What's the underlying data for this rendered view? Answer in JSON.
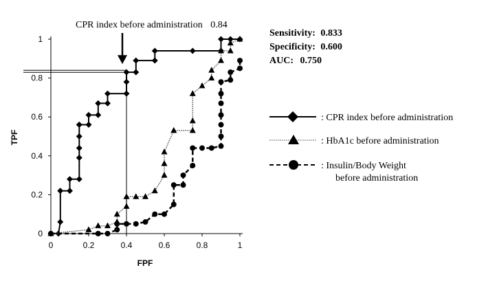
{
  "chart_data": {
    "type": "line",
    "xlabel": "FPF",
    "ylabel": "TPF",
    "xlim": [
      0,
      1
    ],
    "ylim": [
      0,
      1
    ],
    "x_ticks": [
      "0",
      "0.2",
      "0.4",
      "0.6",
      "0.8",
      "1"
    ],
    "y_ticks": [
      "0",
      "0.2",
      "0.4",
      "0.6",
      "0.8",
      "1"
    ],
    "grid": false,
    "annotation": {
      "label": "CPR index before administration",
      "value": "0.84",
      "x": 0.4,
      "y": 0.84
    },
    "stats": [
      {
        "label": "Sensitivity:",
        "value": "0.833"
      },
      {
        "label": "Specificity:",
        "value": "0.600"
      },
      {
        "label": "AUC:",
        "value": "0.750"
      }
    ],
    "legend_position": "right",
    "series": [
      {
        "name": ": CPR index before administration",
        "marker": "diamond",
        "line": "solid",
        "x": [
          0,
          0.04,
          0.05,
          0.05,
          0.1,
          0.1,
          0.15,
          0.15,
          0.15,
          0.15,
          0.15,
          0.15,
          0.2,
          0.2,
          0.25,
          0.25,
          0.3,
          0.3,
          0.4,
          0.4,
          0.4,
          0.45,
          0.45,
          0.55,
          0.55,
          0.75,
          0.9,
          0.9,
          0.95,
          1
        ],
        "y": [
          0,
          0,
          0.06,
          0.22,
          0.22,
          0.28,
          0.28,
          0.39,
          0.44,
          0.5,
          0.56,
          0.56,
          0.56,
          0.61,
          0.61,
          0.67,
          0.67,
          0.72,
          0.72,
          0.78,
          0.83,
          0.83,
          0.89,
          0.89,
          0.94,
          0.94,
          0.94,
          1,
          1,
          1
        ]
      },
      {
        "name": ": HbA1c before administration",
        "marker": "triangle",
        "line": "dotted",
        "x": [
          0,
          0.2,
          0.25,
          0.3,
          0.35,
          0.35,
          0.4,
          0.4,
          0.45,
          0.5,
          0.55,
          0.6,
          0.6,
          0.6,
          0.65,
          0.65,
          0.75,
          0.75,
          0.75,
          0.8,
          0.85,
          0.85,
          0.9,
          0.9,
          0.95,
          0.95,
          1
        ],
        "y": [
          0,
          0.02,
          0.04,
          0.04,
          0.06,
          0.1,
          0.14,
          0.19,
          0.19,
          0.19,
          0.22,
          0.3,
          0.36,
          0.42,
          0.53,
          0.53,
          0.53,
          0.58,
          0.72,
          0.76,
          0.8,
          0.84,
          0.89,
          0.94,
          0.94,
          0.98,
          1
        ]
      },
      {
        "name": ": Insulin/Body Weight",
        "name_line2": "before administration",
        "marker": "circle",
        "line": "dashed",
        "x": [
          0,
          0.25,
          0.3,
          0.35,
          0.35,
          0.4,
          0.45,
          0.5,
          0.55,
          0.6,
          0.65,
          0.65,
          0.7,
          0.7,
          0.75,
          0.75,
          0.8,
          0.85,
          0.9,
          0.9,
          0.9,
          0.9,
          0.9,
          0.9,
          0.9,
          0.95,
          0.95,
          1,
          1
        ],
        "y": [
          0,
          0,
          0,
          0.02,
          0.05,
          0.05,
          0.05,
          0.06,
          0.1,
          0.1,
          0.15,
          0.25,
          0.25,
          0.3,
          0.35,
          0.44,
          0.44,
          0.44,
          0.45,
          0.5,
          0.56,
          0.61,
          0.67,
          0.72,
          0.78,
          0.79,
          0.83,
          0.85,
          0.89
        ]
      }
    ]
  }
}
